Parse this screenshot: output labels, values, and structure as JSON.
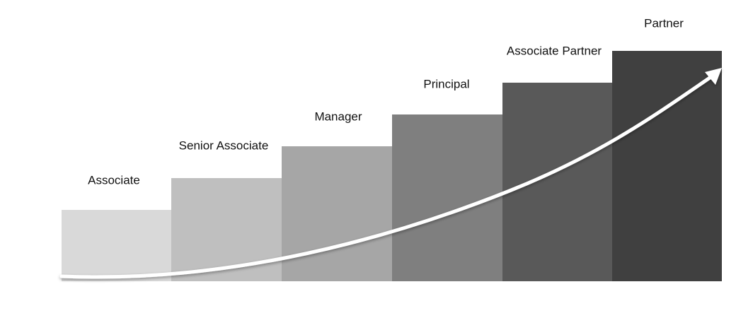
{
  "steps": [
    {
      "label": "Associate"
    },
    {
      "label": "Senior Associate"
    },
    {
      "label": "Manager"
    },
    {
      "label": "Principal"
    },
    {
      "label": "Associate Partner"
    },
    {
      "label": "Partner"
    }
  ]
}
